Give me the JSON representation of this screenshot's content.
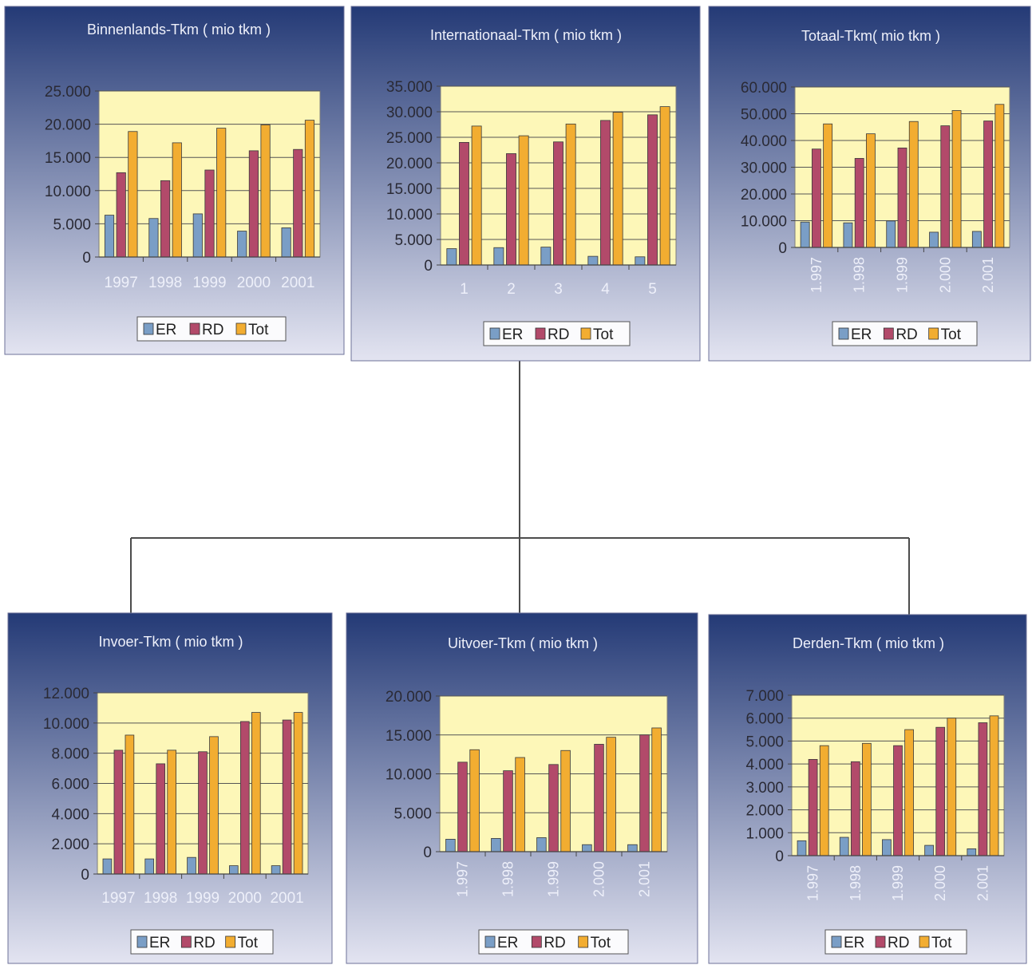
{
  "colors": {
    "ER": "#7a9ec6",
    "RD": "#b24a6a",
    "Tot": "#f2ad31",
    "plot_bg": "#fdf7b8",
    "panel_top": "#243a76",
    "panel_bottom": "#e3e4f1",
    "connector": "#4c4c4c"
  },
  "chart_data": [
    {
      "type": "bar",
      "title": "Binnenlands-Tkm ( mio tkm )",
      "categories": [
        "1997",
        "1998",
        "1999",
        "2000",
        "2001"
      ],
      "rotate_labels": false,
      "series": [
        {
          "name": "ER",
          "values": [
            6300,
            5800,
            6500,
            3900,
            4400
          ]
        },
        {
          "name": "RD",
          "values": [
            12700,
            11500,
            13100,
            16000,
            16200
          ]
        },
        {
          "name": "Tot",
          "values": [
            18900,
            17200,
            19400,
            19900,
            20600
          ]
        }
      ],
      "ylim": [
        0,
        25000
      ],
      "yticks": [
        "0",
        "5.000",
        "10.000",
        "15.000",
        "20.000",
        "25.000"
      ],
      "legend": [
        "ER",
        "RD",
        "Tot"
      ],
      "legend_position": "bottom",
      "grid": true
    },
    {
      "type": "bar",
      "title": "Internationaal-Tkm ( mio tkm )",
      "categories": [
        "1",
        "2",
        "3",
        "4",
        "5"
      ],
      "rotate_labels": false,
      "series": [
        {
          "name": "ER",
          "values": [
            3200,
            3400,
            3500,
            1700,
            1600
          ]
        },
        {
          "name": "RD",
          "values": [
            24000,
            21800,
            24100,
            28300,
            29400
          ]
        },
        {
          "name": "Tot",
          "values": [
            27200,
            25300,
            27600,
            29900,
            31000
          ]
        }
      ],
      "ylim": [
        0,
        35000
      ],
      "yticks": [
        "0",
        "5.000",
        "10.000",
        "15.000",
        "20.000",
        "25.000",
        "30.000",
        "35.000"
      ],
      "legend": [
        "ER",
        "RD",
        "Tot"
      ],
      "legend_position": "bottom",
      "grid": true
    },
    {
      "type": "bar",
      "title": "Totaal-Tkm( mio tkm )",
      "categories": [
        "1.997",
        "1.998",
        "1.999",
        "2.000",
        "2.001"
      ],
      "rotate_labels": true,
      "series": [
        {
          "name": "ER",
          "values": [
            9500,
            9200,
            9900,
            5700,
            6000
          ]
        },
        {
          "name": "RD",
          "values": [
            36800,
            33300,
            37200,
            45500,
            47300
          ]
        },
        {
          "name": "Tot",
          "values": [
            46200,
            42500,
            47100,
            51200,
            53500
          ]
        }
      ],
      "ylim": [
        0,
        60000
      ],
      "yticks": [
        "0",
        "10.000",
        "20.000",
        "30.000",
        "40.000",
        "50.000",
        "60.000"
      ],
      "legend": [
        "ER",
        "RD",
        "Tot"
      ],
      "legend_position": "bottom",
      "grid": true
    },
    {
      "type": "bar",
      "title": "Invoer-Tkm ( mio tkm )",
      "categories": [
        "1997",
        "1998",
        "1999",
        "2000",
        "2001"
      ],
      "rotate_labels": false,
      "series": [
        {
          "name": "ER",
          "values": [
            1000,
            1000,
            1100,
            550,
            550
          ]
        },
        {
          "name": "RD",
          "values": [
            8200,
            7300,
            8100,
            10100,
            10200
          ]
        },
        {
          "name": "Tot",
          "values": [
            9200,
            8200,
            9100,
            10700,
            10700
          ]
        }
      ],
      "ylim": [
        0,
        12000
      ],
      "yticks": [
        "0",
        "2.000",
        "4.000",
        "6.000",
        "8.000",
        "10.000",
        "12.000"
      ],
      "legend": [
        "ER",
        "RD",
        "Tot"
      ],
      "legend_position": "bottom",
      "grid": true
    },
    {
      "type": "bar",
      "title": "Uitvoer-Tkm ( mio tkm )",
      "categories": [
        "1.997",
        "1.998",
        "1.999",
        "2.000",
        "2.001"
      ],
      "rotate_labels": true,
      "series": [
        {
          "name": "ER",
          "values": [
            1600,
            1700,
            1800,
            900,
            900
          ]
        },
        {
          "name": "RD",
          "values": [
            11500,
            10400,
            11200,
            13800,
            15000
          ]
        },
        {
          "name": "Tot",
          "values": [
            13100,
            12100,
            13000,
            14700,
            15900
          ]
        }
      ],
      "ylim": [
        0,
        20000
      ],
      "yticks": [
        "0",
        "5.000",
        "10.000",
        "15.000",
        "20.000"
      ],
      "legend": [
        "ER",
        "RD",
        "Tot"
      ],
      "legend_position": "bottom",
      "grid": true
    },
    {
      "type": "bar",
      "title": "Derden-Tkm ( mio tkm )",
      "categories": [
        "1.997",
        "1.998",
        "1.999",
        "2.000",
        "2.001"
      ],
      "rotate_labels": true,
      "series": [
        {
          "name": "ER",
          "values": [
            650,
            800,
            700,
            450,
            300
          ]
        },
        {
          "name": "RD",
          "values": [
            4200,
            4100,
            4800,
            5600,
            5800
          ]
        },
        {
          "name": "Tot",
          "values": [
            4800,
            4900,
            5500,
            6000,
            6100
          ]
        }
      ],
      "ylim": [
        0,
        7000
      ],
      "yticks": [
        "0",
        "1.000",
        "2.000",
        "3.000",
        "4.000",
        "5.000",
        "6.000",
        "7.000"
      ],
      "legend": [
        "ER",
        "RD",
        "Tot"
      ],
      "legend_position": "bottom",
      "grid": true
    }
  ]
}
